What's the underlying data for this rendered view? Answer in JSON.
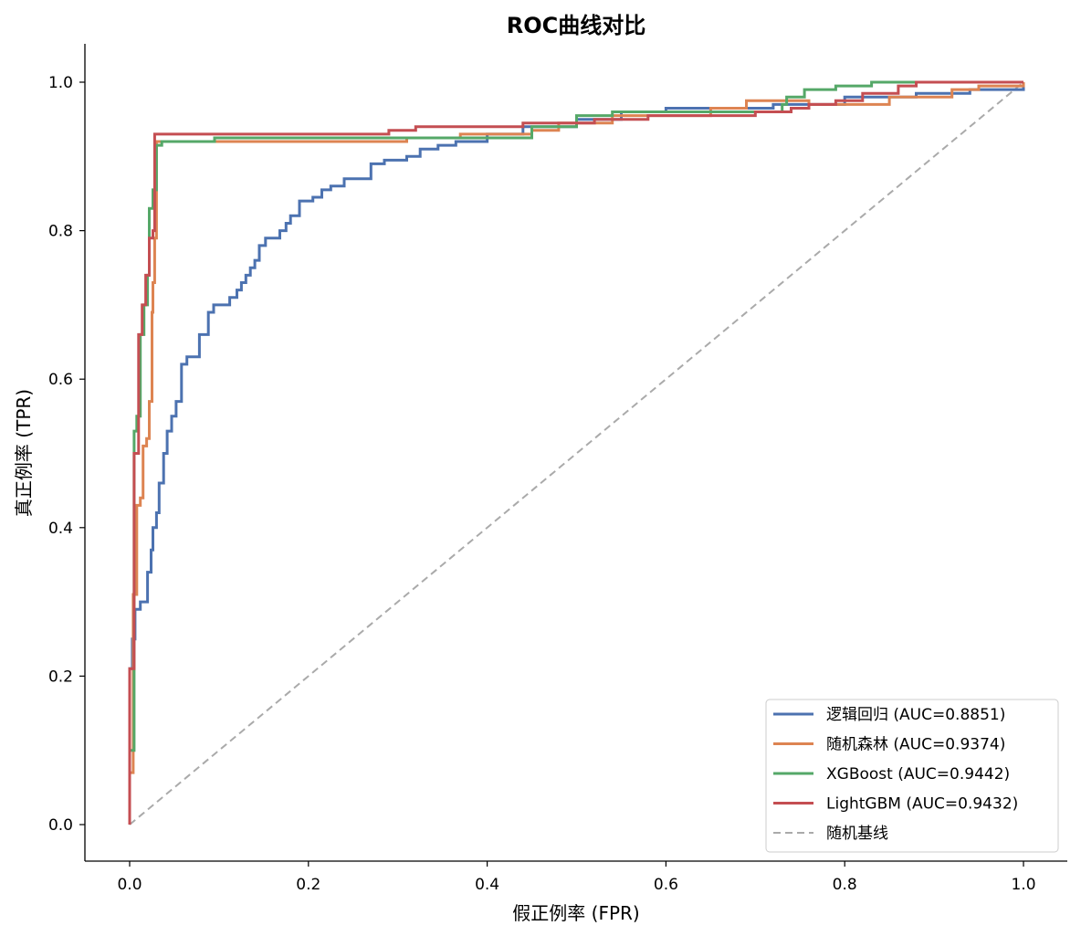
{
  "chart_data": {
    "type": "line",
    "title": "ROC曲线对比",
    "xlabel": "假正例率 (FPR)",
    "ylabel": "真正例率 (TPR)",
    "xlim": [
      -0.05,
      1.05
    ],
    "ylim": [
      -0.05,
      1.05
    ],
    "xticks": [
      "0.0",
      "0.2",
      "0.4",
      "0.6",
      "0.8",
      "1.0"
    ],
    "yticks": [
      "0.0",
      "0.2",
      "0.4",
      "0.6",
      "0.8",
      "1.0"
    ],
    "grid": false,
    "legend_position": "lower-right",
    "series": [
      {
        "name": "逻辑回归 (AUC=0.8851)",
        "color": "#4c72b0",
        "points": [
          [
            0,
            0
          ],
          [
            0,
            0.21
          ],
          [
            0.003,
            0.21
          ],
          [
            0.003,
            0.25
          ],
          [
            0.006,
            0.25
          ],
          [
            0.006,
            0.29
          ],
          [
            0.012,
            0.29
          ],
          [
            0.012,
            0.3
          ],
          [
            0.02,
            0.3
          ],
          [
            0.02,
            0.34
          ],
          [
            0.024,
            0.34
          ],
          [
            0.024,
            0.37
          ],
          [
            0.026,
            0.37
          ],
          [
            0.026,
            0.4
          ],
          [
            0.03,
            0.4
          ],
          [
            0.03,
            0.42
          ],
          [
            0.033,
            0.42
          ],
          [
            0.033,
            0.46
          ],
          [
            0.038,
            0.46
          ],
          [
            0.038,
            0.5
          ],
          [
            0.042,
            0.5
          ],
          [
            0.042,
            0.53
          ],
          [
            0.047,
            0.53
          ],
          [
            0.047,
            0.55
          ],
          [
            0.052,
            0.55
          ],
          [
            0.052,
            0.57
          ],
          [
            0.058,
            0.57
          ],
          [
            0.058,
            0.62
          ],
          [
            0.064,
            0.62
          ],
          [
            0.064,
            0.63
          ],
          [
            0.078,
            0.63
          ],
          [
            0.078,
            0.66
          ],
          [
            0.088,
            0.66
          ],
          [
            0.088,
            0.69
          ],
          [
            0.094,
            0.69
          ],
          [
            0.094,
            0.7
          ],
          [
            0.112,
            0.7
          ],
          [
            0.112,
            0.71
          ],
          [
            0.12,
            0.71
          ],
          [
            0.12,
            0.72
          ],
          [
            0.125,
            0.72
          ],
          [
            0.125,
            0.73
          ],
          [
            0.13,
            0.73
          ],
          [
            0.13,
            0.74
          ],
          [
            0.135,
            0.74
          ],
          [
            0.135,
            0.75
          ],
          [
            0.14,
            0.75
          ],
          [
            0.14,
            0.76
          ],
          [
            0.145,
            0.76
          ],
          [
            0.145,
            0.78
          ],
          [
            0.152,
            0.78
          ],
          [
            0.152,
            0.79
          ],
          [
            0.168,
            0.79
          ],
          [
            0.168,
            0.8
          ],
          [
            0.175,
            0.8
          ],
          [
            0.175,
            0.81
          ],
          [
            0.18,
            0.81
          ],
          [
            0.18,
            0.82
          ],
          [
            0.19,
            0.82
          ],
          [
            0.19,
            0.84
          ],
          [
            0.205,
            0.84
          ],
          [
            0.205,
            0.845
          ],
          [
            0.215,
            0.845
          ],
          [
            0.215,
            0.855
          ],
          [
            0.225,
            0.855
          ],
          [
            0.225,
            0.86
          ],
          [
            0.24,
            0.86
          ],
          [
            0.24,
            0.87
          ],
          [
            0.27,
            0.87
          ],
          [
            0.27,
            0.89
          ],
          [
            0.285,
            0.89
          ],
          [
            0.285,
            0.895
          ],
          [
            0.31,
            0.895
          ],
          [
            0.31,
            0.9
          ],
          [
            0.325,
            0.9
          ],
          [
            0.325,
            0.91
          ],
          [
            0.345,
            0.91
          ],
          [
            0.345,
            0.915
          ],
          [
            0.365,
            0.915
          ],
          [
            0.365,
            0.92
          ],
          [
            0.4,
            0.92
          ],
          [
            0.4,
            0.93
          ],
          [
            0.44,
            0.93
          ],
          [
            0.44,
            0.94
          ],
          [
            0.5,
            0.94
          ],
          [
            0.5,
            0.95
          ],
          [
            0.55,
            0.95
          ],
          [
            0.55,
            0.96
          ],
          [
            0.6,
            0.96
          ],
          [
            0.6,
            0.965
          ],
          [
            0.72,
            0.965
          ],
          [
            0.72,
            0.97
          ],
          [
            0.8,
            0.97
          ],
          [
            0.8,
            0.98
          ],
          [
            0.88,
            0.98
          ],
          [
            0.88,
            0.985
          ],
          [
            0.94,
            0.985
          ],
          [
            0.94,
            0.99
          ],
          [
            1.0,
            0.99
          ],
          [
            1.0,
            1.0
          ]
        ]
      },
      {
        "name": "随机森林 (AUC=0.9374)",
        "color": "#dd8452",
        "points": [
          [
            0,
            0
          ],
          [
            0,
            0.07
          ],
          [
            0.004,
            0.07
          ],
          [
            0.004,
            0.31
          ],
          [
            0.008,
            0.31
          ],
          [
            0.008,
            0.43
          ],
          [
            0.012,
            0.43
          ],
          [
            0.012,
            0.44
          ],
          [
            0.015,
            0.44
          ],
          [
            0.015,
            0.51
          ],
          [
            0.019,
            0.51
          ],
          [
            0.019,
            0.52
          ],
          [
            0.022,
            0.52
          ],
          [
            0.022,
            0.57
          ],
          [
            0.025,
            0.57
          ],
          [
            0.025,
            0.69
          ],
          [
            0.026,
            0.69
          ],
          [
            0.026,
            0.73
          ],
          [
            0.028,
            0.73
          ],
          [
            0.028,
            0.79
          ],
          [
            0.03,
            0.79
          ],
          [
            0.03,
            0.92
          ],
          [
            0.31,
            0.92
          ],
          [
            0.31,
            0.925
          ],
          [
            0.37,
            0.925
          ],
          [
            0.37,
            0.93
          ],
          [
            0.45,
            0.93
          ],
          [
            0.45,
            0.935
          ],
          [
            0.48,
            0.935
          ],
          [
            0.48,
            0.945
          ],
          [
            0.54,
            0.945
          ],
          [
            0.54,
            0.955
          ],
          [
            0.65,
            0.955
          ],
          [
            0.65,
            0.965
          ],
          [
            0.69,
            0.965
          ],
          [
            0.69,
            0.975
          ],
          [
            0.76,
            0.975
          ],
          [
            0.76,
            0.97
          ],
          [
            0.85,
            0.97
          ],
          [
            0.85,
            0.98
          ],
          [
            0.92,
            0.98
          ],
          [
            0.92,
            0.99
          ],
          [
            0.95,
            0.99
          ],
          [
            0.95,
            0.995
          ],
          [
            1.0,
            0.995
          ],
          [
            1.0,
            1.0
          ]
        ]
      },
      {
        "name": "XGBoost (AUC=0.9442)",
        "color": "#55a868",
        "points": [
          [
            0,
            0
          ],
          [
            0,
            0.1
          ],
          [
            0.005,
            0.1
          ],
          [
            0.005,
            0.53
          ],
          [
            0.008,
            0.53
          ],
          [
            0.008,
            0.55
          ],
          [
            0.012,
            0.55
          ],
          [
            0.012,
            0.66
          ],
          [
            0.016,
            0.66
          ],
          [
            0.016,
            0.7
          ],
          [
            0.02,
            0.7
          ],
          [
            0.02,
            0.74
          ],
          [
            0.022,
            0.74
          ],
          [
            0.022,
            0.83
          ],
          [
            0.026,
            0.83
          ],
          [
            0.026,
            0.855
          ],
          [
            0.03,
            0.855
          ],
          [
            0.03,
            0.915
          ],
          [
            0.036,
            0.915
          ],
          [
            0.036,
            0.92
          ],
          [
            0.095,
            0.92
          ],
          [
            0.095,
            0.925
          ],
          [
            0.45,
            0.925
          ],
          [
            0.45,
            0.94
          ],
          [
            0.5,
            0.94
          ],
          [
            0.5,
            0.955
          ],
          [
            0.54,
            0.955
          ],
          [
            0.54,
            0.96
          ],
          [
            0.73,
            0.96
          ],
          [
            0.73,
            0.97
          ],
          [
            0.735,
            0.97
          ],
          [
            0.735,
            0.98
          ],
          [
            0.755,
            0.98
          ],
          [
            0.755,
            0.99
          ],
          [
            0.79,
            0.99
          ],
          [
            0.79,
            0.995
          ],
          [
            0.83,
            0.995
          ],
          [
            0.83,
            1.0
          ],
          [
            1.0,
            1.0
          ]
        ]
      },
      {
        "name": "LightGBM (AUC=0.9432)",
        "color": "#c44e52",
        "points": [
          [
            0,
            0
          ],
          [
            0,
            0.21
          ],
          [
            0.005,
            0.21
          ],
          [
            0.005,
            0.5
          ],
          [
            0.01,
            0.5
          ],
          [
            0.01,
            0.66
          ],
          [
            0.014,
            0.66
          ],
          [
            0.014,
            0.7
          ],
          [
            0.018,
            0.7
          ],
          [
            0.018,
            0.74
          ],
          [
            0.022,
            0.74
          ],
          [
            0.022,
            0.79
          ],
          [
            0.026,
            0.79
          ],
          [
            0.026,
            0.8
          ],
          [
            0.028,
            0.8
          ],
          [
            0.028,
            0.93
          ],
          [
            0.29,
            0.93
          ],
          [
            0.29,
            0.935
          ],
          [
            0.32,
            0.935
          ],
          [
            0.32,
            0.94
          ],
          [
            0.44,
            0.94
          ],
          [
            0.44,
            0.945
          ],
          [
            0.52,
            0.945
          ],
          [
            0.52,
            0.95
          ],
          [
            0.58,
            0.95
          ],
          [
            0.58,
            0.955
          ],
          [
            0.7,
            0.955
          ],
          [
            0.7,
            0.96
          ],
          [
            0.74,
            0.96
          ],
          [
            0.74,
            0.965
          ],
          [
            0.76,
            0.965
          ],
          [
            0.76,
            0.97
          ],
          [
            0.79,
            0.97
          ],
          [
            0.79,
            0.975
          ],
          [
            0.82,
            0.975
          ],
          [
            0.82,
            0.985
          ],
          [
            0.86,
            0.985
          ],
          [
            0.86,
            0.995
          ],
          [
            0.88,
            0.995
          ],
          [
            0.88,
            1.0
          ],
          [
            1.0,
            1.0
          ]
        ]
      },
      {
        "name": "随机基线",
        "color": "#aaaaaa",
        "dashed": true,
        "points": [
          [
            0,
            0
          ],
          [
            1,
            1
          ]
        ]
      }
    ]
  }
}
